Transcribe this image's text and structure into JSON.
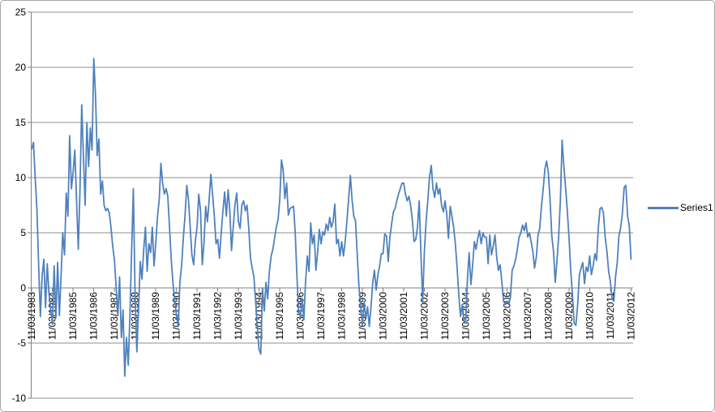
{
  "chart_data": {
    "type": "line",
    "title": "",
    "xlabel": "",
    "ylabel": "",
    "ylim": [
      -10,
      25
    ],
    "y_ticks": [
      25,
      20,
      15,
      10,
      5,
      0,
      -5,
      -10
    ],
    "grid": true,
    "legend_position": "right",
    "x_label_rotation": -90,
    "x_tick_labels": [
      "11/03/1983",
      "11/03/1984",
      "11/03/1985",
      "11/03/1986",
      "11/03/1987",
      "11/03/1988",
      "11/03/1989",
      "11/03/1990",
      "11/03/1991",
      "11/03/1992",
      "11/03/1993",
      "11/03/1994",
      "11/03/1995",
      "11/03/1996",
      "11/03/1997",
      "11/03/1998",
      "11/03/1999",
      "11/03/2000",
      "11/03/2001",
      "11/03/2002",
      "11/03/2003",
      "11/03/2004",
      "11/03/2005",
      "11/03/2006",
      "11/03/2007",
      "11/03/2008",
      "11/03/2009",
      "11/03/2010",
      "11/03/2011",
      "11/03/2012"
    ],
    "series": [
      {
        "name": "Series1",
        "color": "#4F81BD",
        "values": [
          12.6,
          13.2,
          10,
          7,
          2,
          -2.6,
          1,
          2.6,
          -1.8,
          2.2,
          -0.5,
          -2,
          -3.3,
          2,
          -2.7,
          2.3,
          -2.5,
          1,
          5,
          3,
          8.6,
          6.5,
          13.8,
          9,
          10.5,
          12.5,
          8,
          3.5,
          9,
          16.6,
          12,
          7.5,
          15,
          11,
          14.5,
          12.5,
          20.8,
          17.5,
          12,
          13.5,
          8.5,
          9.7,
          7.5,
          7,
          7.2,
          6.8,
          5.5,
          3.8,
          2.5,
          0,
          -2.5,
          1,
          -4.5,
          -2,
          -8,
          -4.5,
          -7,
          -2.5,
          3.5,
          9,
          -0.5,
          -5.8,
          -2,
          2.4,
          0.8,
          3.5,
          5.5,
          1.5,
          4,
          3.2,
          5.5,
          2,
          4,
          6.5,
          8,
          11.3,
          9.5,
          8.5,
          9,
          8.3,
          5.5,
          2.5,
          0.4,
          -1.1,
          -2.4,
          -3.5,
          0.5,
          2,
          4.5,
          6.5,
          9.3,
          8,
          5.5,
          3,
          2.1,
          4.3,
          5.5,
          8.5,
          7,
          2.1,
          4,
          7.4,
          6,
          8,
          10.3,
          8.5,
          6.5,
          4,
          4.4,
          2.7,
          5,
          7,
          8.7,
          6.5,
          8.9,
          7,
          3.4,
          5.5,
          7.5,
          8.6,
          6,
          5.4,
          7.5,
          7.9,
          7,
          7.5,
          5.5,
          2.7,
          1.8,
          1,
          -1.2,
          -3.6,
          -5.6,
          -6,
          0,
          -2.1,
          0.5,
          -1,
          1.5,
          2.9,
          3.5,
          4.5,
          5.5,
          6.2,
          8,
          11.6,
          10.7,
          8.1,
          9.5,
          6.6,
          7.2,
          7.3,
          7.4,
          5,
          1,
          -2.1,
          -2.6,
          -1,
          -2.9,
          0.5,
          2.9,
          1.5,
          5.9,
          4,
          4.8,
          1.6,
          3.2,
          5.3,
          4,
          5.1,
          4.8,
          5.8,
          5.2,
          6.4,
          5.5,
          6,
          7.6,
          4,
          4.4,
          2.9,
          4.2,
          2.9,
          4.2,
          6,
          8,
          10.2,
          8,
          6.5,
          6.1,
          3,
          0.1,
          -1.5,
          -3.4,
          -1.3,
          -2.8,
          -1.7,
          -3.5,
          -1.7,
          0.5,
          1.6,
          -0.2,
          1.2,
          2,
          3.1,
          3.1,
          4.9,
          4.7,
          2.4,
          4.6,
          5.8,
          6.9,
          7.2,
          7.9,
          8.5,
          9,
          9.5,
          9.5,
          8.5,
          7.9,
          8.3,
          7.5,
          6.2,
          4.2,
          4.4,
          5.5,
          7.9,
          3,
          -1.2,
          3.3,
          6,
          8,
          10.1,
          11.1,
          9,
          8.2,
          9.5,
          8.5,
          9,
          7.5,
          6.9,
          7.9,
          6.7,
          4.5,
          7.4,
          6.5,
          5.5,
          4,
          1.8,
          -0.7,
          -2.6,
          -1.5,
          -3,
          -3.2,
          0.8,
          3.2,
          0.3,
          2,
          4.2,
          3.5,
          4.5,
          5.2,
          4,
          5,
          4.6,
          4.6,
          2.2,
          4.8,
          3,
          3.8,
          4.8,
          2.8,
          1.6,
          2.1,
          0.5,
          -1.2,
          -1.5,
          -1.2,
          -1.5,
          -0.8,
          1.6,
          2,
          2.6,
          3.5,
          4.6,
          5,
          5.7,
          5.2,
          5.9,
          4.6,
          5,
          4.2,
          3.3,
          1.8,
          2.8,
          4.8,
          5.4,
          7.4,
          9,
          10.8,
          11.5,
          10.5,
          7.9,
          4.7,
          3.3,
          0.5,
          2.5,
          4.7,
          8,
          13.4,
          11,
          9.1,
          7,
          4.6,
          1.5,
          -0.7,
          -3.2,
          -3.4,
          -1.5,
          1.2,
          1.8,
          2.3,
          0.4,
          1.9,
          1.5,
          2.9,
          1.2,
          2,
          3.1,
          2.5,
          5.4,
          7.2,
          7.3,
          6.8,
          4.6,
          3.3,
          1.5,
          0.6,
          -1,
          -1.2,
          1,
          2.3,
          4.7,
          5.5,
          6.8,
          9.1,
          9.3,
          6.5,
          5.6,
          2.6
        ]
      }
    ]
  },
  "colors": {
    "line": "#4F81BD",
    "gridline": "#8F8F8F",
    "axis": "#808080",
    "border": "#A6A6A6",
    "text": "#000000",
    "background": "#FFFFFF"
  }
}
